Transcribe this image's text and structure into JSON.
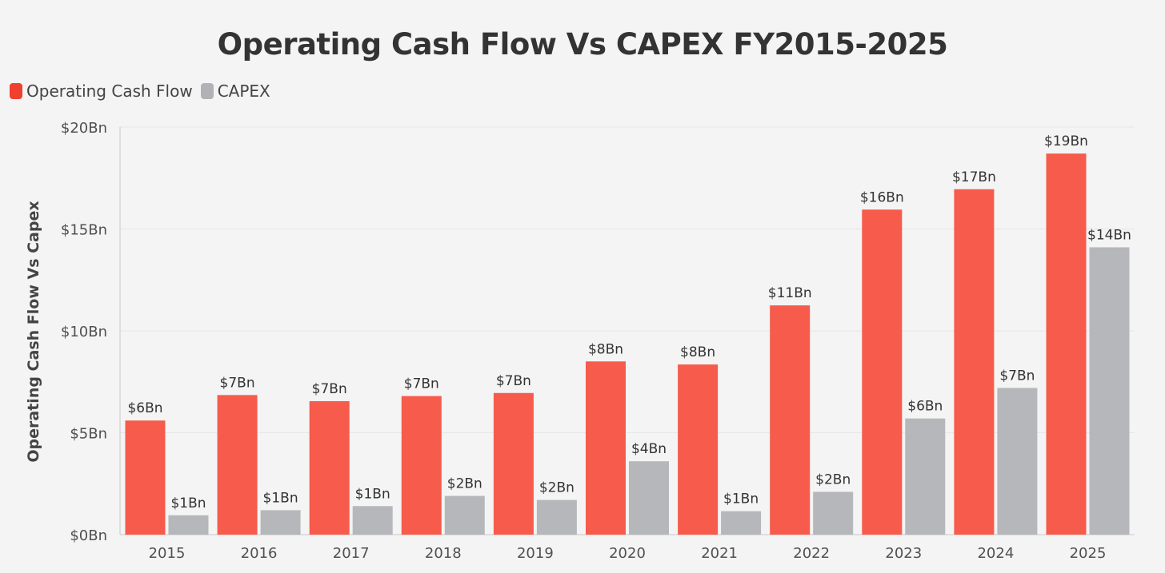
{
  "chart_data": {
    "type": "bar",
    "title": "Operating Cash Flow Vs CAPEX FY2015-2025",
    "ylabel": "Operating Cash Flow Vs Capex",
    "xlabel": "",
    "ylim": [
      0,
      20
    ],
    "y_ticks": [
      {
        "value": 0,
        "label": "$0Bn"
      },
      {
        "value": 5,
        "label": "$5Bn"
      },
      {
        "value": 10,
        "label": "$10Bn"
      },
      {
        "value": 15,
        "label": "$15Bn"
      },
      {
        "value": 20,
        "label": "$20Bn"
      }
    ],
    "categories": [
      "2015",
      "2016",
      "2017",
      "2018",
      "2019",
      "2020",
      "2021",
      "2022",
      "2023",
      "2024",
      "2025"
    ],
    "series": [
      {
        "name": "Operating Cash Flow",
        "color": "#f65b4b",
        "legend_color": "#f0402f",
        "values": [
          5.6,
          6.85,
          6.55,
          6.8,
          6.95,
          8.5,
          8.35,
          11.25,
          15.95,
          16.95,
          18.7
        ],
        "labels": [
          "$6Bn",
          "$7Bn",
          "$7Bn",
          "$7Bn",
          "$7Bn",
          "$8Bn",
          "$8Bn",
          "$11Bn",
          "$16Bn",
          "$17Bn",
          "$19Bn"
        ]
      },
      {
        "name": "CAPEX",
        "color": "#b5b7ba",
        "legend_color": "#b0b2b5",
        "values": [
          0.95,
          1.2,
          1.4,
          1.9,
          1.7,
          3.6,
          1.15,
          2.1,
          5.7,
          7.2,
          14.1
        ],
        "labels": [
          "$1Bn",
          "$1Bn",
          "$1Bn",
          "$2Bn",
          "$2Bn",
          "$4Bn",
          "$1Bn",
          "$2Bn",
          "$6Bn",
          "$7Bn",
          "$14Bn"
        ]
      }
    ],
    "legend_position": "top-left",
    "grid": true
  }
}
